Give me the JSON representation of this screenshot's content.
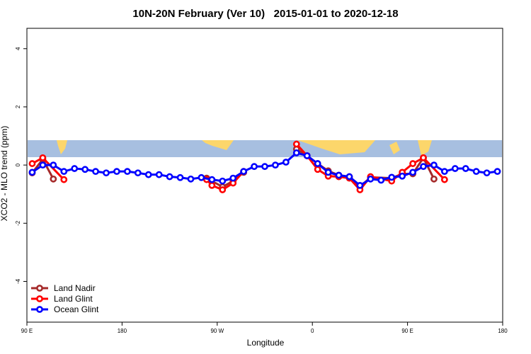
{
  "chart_data": {
    "type": "line",
    "title": "10N-20N February (Ver 10)   2015-01-01 to 2020-12-18",
    "x_label": "Longitude",
    "y_label": "XCO2 - MLO trend (ppm)",
    "xlim": [
      -270,
      180
    ],
    "ylim": [
      -5.4,
      4.7
    ],
    "xticks": [
      {
        "value": -270,
        "label": "90 E"
      },
      {
        "value": -180,
        "label": "180"
      },
      {
        "value": -90,
        "label": "90 W"
      },
      0,
      {
        "value": 90,
        "label": "90 E"
      },
      180
    ],
    "yticks": [
      -4,
      -2,
      0,
      2,
      4
    ],
    "legend": "bottom-left",
    "series": [
      {
        "name": "Land Nadir",
        "color": "#a52a2a",
        "x": [
          -265,
          -255,
          -245,
          null,
          -100,
          -85,
          -75,
          -65,
          null,
          -15,
          -5,
          5,
          15,
          25,
          35,
          45,
          55,
          75,
          85,
          95,
          105,
          115
        ],
        "values": [
          -0.27,
          0.2,
          -0.48,
          null,
          -0.45,
          -0.75,
          -0.55,
          -0.25,
          null,
          0.55,
          0.32,
          0.05,
          -0.2,
          -0.35,
          -0.4,
          -0.75,
          -0.42,
          -0.45,
          -0.3,
          -0.3,
          0.25,
          -0.48
        ]
      },
      {
        "name": "Land Glint",
        "color": "#ff0000",
        "x": [
          -265,
          -255,
          -235,
          null,
          -100,
          -95,
          -85,
          -75,
          -65,
          null,
          -15,
          -5,
          5,
          15,
          25,
          35,
          45,
          55,
          75,
          85,
          95,
          105,
          125
        ],
        "values": [
          0.05,
          0.25,
          -0.5,
          null,
          -0.5,
          -0.7,
          -0.85,
          -0.62,
          -0.22,
          null,
          0.72,
          0.32,
          -0.15,
          -0.38,
          -0.4,
          -0.45,
          -0.85,
          -0.4,
          -0.55,
          -0.25,
          0.05,
          0.25,
          -0.5
        ]
      },
      {
        "name": "Ocean Glint",
        "color": "#0000ff",
        "x": [
          -265,
          -255,
          -245,
          -235,
          -225,
          -215,
          -205,
          -195,
          -185,
          -175,
          -165,
          -155,
          -145,
          -135,
          -125,
          -115,
          -105,
          -95,
          -85,
          -75,
          -65,
          -55,
          -45,
          -35,
          -25,
          -15,
          -5,
          5,
          15,
          25,
          35,
          45,
          55,
          65,
          75,
          85,
          95,
          105,
          115,
          125,
          135,
          145,
          155,
          165,
          175
        ],
        "values": [
          -0.25,
          0.0,
          0.0,
          -0.22,
          -0.12,
          -0.15,
          -0.22,
          -0.27,
          -0.22,
          -0.22,
          -0.27,
          -0.33,
          -0.33,
          -0.4,
          -0.43,
          -0.48,
          -0.43,
          -0.5,
          -0.55,
          -0.45,
          -0.22,
          -0.05,
          -0.05,
          0.0,
          0.1,
          0.42,
          0.32,
          0.05,
          -0.25,
          -0.35,
          -0.4,
          -0.7,
          -0.48,
          -0.52,
          -0.42,
          -0.38,
          -0.25,
          -0.05,
          0.0,
          -0.22,
          -0.12,
          -0.12,
          -0.22,
          -0.27,
          -0.22
        ]
      }
    ]
  }
}
